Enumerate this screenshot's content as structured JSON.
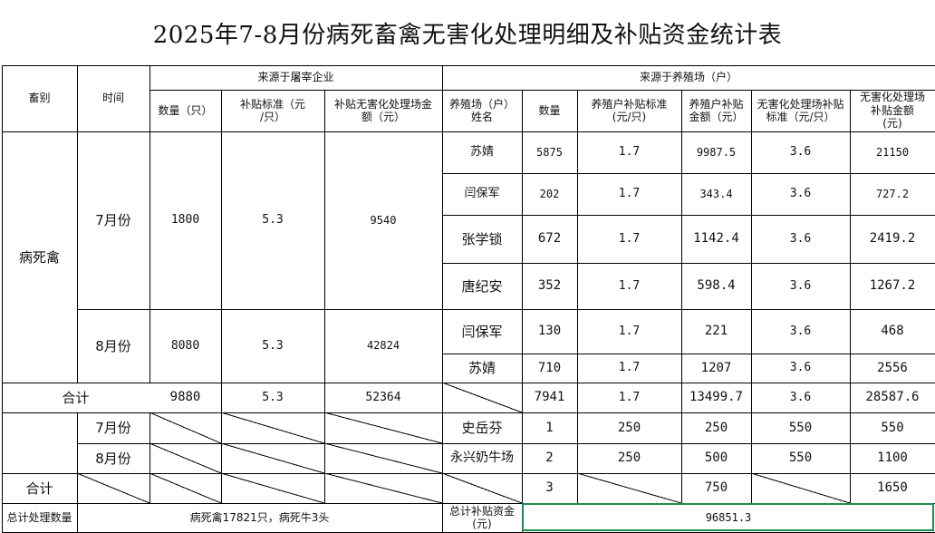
{
  "title": "2025年7-8月份病死畜禽无害化处理明细及补贴资金统计表",
  "header": {
    "category": "畜别",
    "time": "时间",
    "slaughter_group": "来源于屠宰企业",
    "farm_group": "来源于养殖场（户）",
    "s_qty": "数量（只）",
    "s_std": "补贴标准（元\n/只）",
    "s_amt": "补贴无害化处理场金\n额（元）",
    "f_name": "养殖场（户）\n姓名",
    "f_qty": "数量",
    "f_std": "养殖户补贴标准\n(元/只)",
    "f_amt": "养殖户补贴\n金额（元）",
    "p_std": "无害化处理场补贴\n标准（元/只）",
    "p_amt": "无害化处理场\n补贴金额\n(元)"
  },
  "section1": {
    "category": "病死禽",
    "july": {
      "label": "7月份",
      "s_qty": "1800",
      "s_std": "5.3",
      "s_amt": "9540"
    },
    "aug": {
      "label": "8月份",
      "s_qty": "8080",
      "s_std": "5.3",
      "s_amt": "42824"
    },
    "farms": [
      {
        "name": "苏婧",
        "qty": "5875",
        "std": "1.7",
        "amt": "9987.5",
        "p_std": "3.6",
        "p_amt": "21150"
      },
      {
        "name": "闫保军",
        "qty": "202",
        "std": "1.7",
        "amt": "343.4",
        "p_std": "3.6",
        "p_amt": "727.2"
      },
      {
        "name": "张学锁",
        "qty": "672",
        "std": "1.7",
        "amt": "1142.4",
        "p_std": "3.6",
        "p_amt": "2419.2"
      },
      {
        "name": "唐纪安",
        "qty": "352",
        "std": "1.7",
        "amt": "598.4",
        "p_std": "3.6",
        "p_amt": "1267.2"
      },
      {
        "name": "闫保军",
        "qty": "130",
        "std": "1.7",
        "amt": "221",
        "p_std": "3.6",
        "p_amt": "468"
      },
      {
        "name": "苏婧",
        "qty": "710",
        "std": "1.7",
        "amt": "1207",
        "p_std": "3.6",
        "p_amt": "2556"
      }
    ],
    "total": {
      "label": "合计",
      "s_qty": "9880",
      "s_std": "5.3",
      "s_amt": "52364",
      "qty": "7941",
      "std": "1.7",
      "amt": "13499.7",
      "p_std": "3.6",
      "p_amt": "28587.6"
    }
  },
  "section2": {
    "july": {
      "label": "7月份",
      "name": "史岳芬",
      "qty": "1",
      "std": "250",
      "amt": "250",
      "p_std": "550",
      "p_amt": "550"
    },
    "aug": {
      "label": "8月份",
      "name": "永兴奶牛场",
      "qty": "2",
      "std": "250",
      "amt": "500",
      "p_std": "550",
      "p_amt": "1100"
    },
    "total": {
      "label": "合计",
      "qty": "3",
      "amt": "750",
      "p_amt": "1650"
    }
  },
  "footer": {
    "total_label": "总计处理数量",
    "total_value": "病死禽17821只，病死牛3头",
    "subsidy_label": "总计补贴资金\n(元)",
    "subsidy_value": "96851.3"
  }
}
